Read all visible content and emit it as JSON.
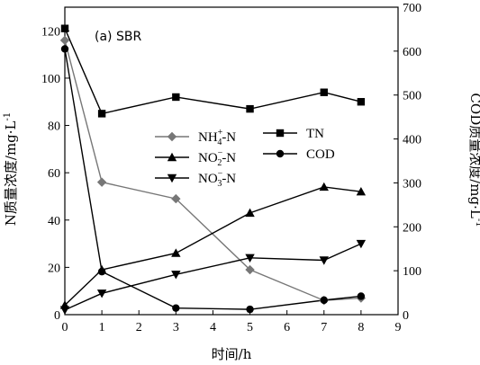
{
  "chart_data": {
    "type": "line",
    "title": "(a)  SBR",
    "xlabel": "时间/h",
    "ylabel": "N质量浓度/mg·L",
    "ylabel_sup": "-1",
    "y2label": "COD质量浓度/mg·L",
    "y2label_sup": "-1",
    "xlim": [
      0,
      9
    ],
    "ylim": [
      0,
      130
    ],
    "y2lim": [
      0,
      700
    ],
    "xticks": [
      0,
      1,
      2,
      3,
      4,
      5,
      6,
      7,
      8,
      9
    ],
    "yticks": [
      0,
      20,
      40,
      60,
      80,
      100,
      120
    ],
    "y2ticks": [
      0,
      100,
      200,
      300,
      400,
      500,
      600,
      700
    ],
    "grid": false,
    "legend_placement": "center",
    "series": [
      {
        "key": "nh4",
        "label_base": "NH",
        "label_sub": "4",
        "label_sup": "+",
        "label_tail": "-N",
        "axis": "left",
        "marker": "diamond",
        "color": "#777777",
        "x": [
          0,
          1,
          3,
          5,
          7,
          8
        ],
        "y": [
          116,
          56,
          49,
          19,
          6,
          7
        ]
      },
      {
        "key": "no2",
        "label_base": "NO",
        "label_sub": "2",
        "label_sup": "−",
        "label_tail": "-N",
        "axis": "left",
        "marker": "triangle-up",
        "color": "#000000",
        "x": [
          0,
          1,
          3,
          5,
          7,
          8
        ],
        "y": [
          4,
          19,
          26,
          43,
          54,
          52
        ]
      },
      {
        "key": "no3",
        "label_base": "NO",
        "label_sub": "3",
        "label_sup": "−",
        "label_tail": "-N",
        "axis": "left",
        "marker": "triangle-down",
        "color": "#000000",
        "x": [
          0,
          1,
          3,
          5,
          7,
          8
        ],
        "y": [
          2,
          9,
          17,
          24,
          23,
          30
        ]
      },
      {
        "key": "tn",
        "label_base": "TN",
        "label_sub": "",
        "label_sup": "",
        "label_tail": "",
        "axis": "left",
        "marker": "square",
        "color": "#000000",
        "x": [
          0,
          1,
          3,
          5,
          7,
          8
        ],
        "y": [
          121,
          85,
          92,
          87,
          94,
          90
        ]
      },
      {
        "key": "cod",
        "label_base": "COD",
        "label_sub": "",
        "label_sup": "",
        "label_tail": "",
        "axis": "right",
        "marker": "circle",
        "color": "#000000",
        "x": [
          0,
          1,
          3,
          5,
          7,
          8
        ],
        "y": [
          605,
          98,
          15,
          12,
          33,
          42
        ]
      }
    ]
  }
}
